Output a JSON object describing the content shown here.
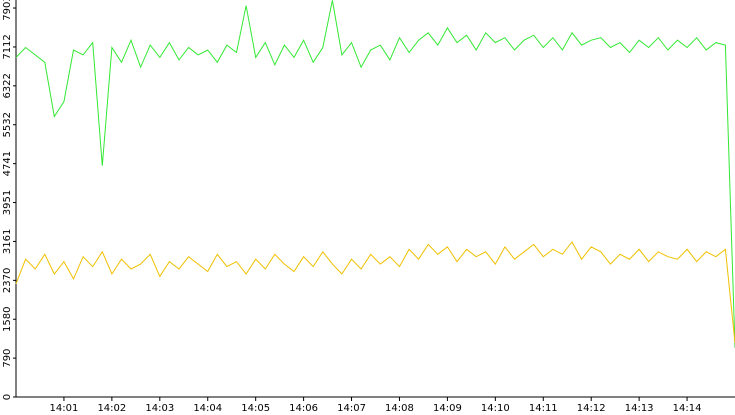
{
  "chart_data": {
    "type": "line",
    "x": [
      0,
      0.2,
      0.4,
      0.6,
      0.8,
      1,
      1.2,
      1.4,
      1.6,
      1.8,
      2,
      2.2,
      2.4,
      2.6,
      2.8,
      3,
      3.2,
      3.4,
      3.6,
      3.8,
      4,
      4.2,
      4.4,
      4.6,
      4.8,
      5,
      5.2,
      5.4,
      5.6,
      5.8,
      6,
      6.2,
      6.4,
      6.6,
      6.8,
      7,
      7.2,
      7.4,
      7.6,
      7.8,
      8,
      8.2,
      8.4,
      8.6,
      8.8,
      9,
      9.2,
      9.4,
      9.6,
      9.8,
      10,
      10.2,
      10.4,
      10.6,
      10.8,
      11,
      11.2,
      11.4,
      11.6,
      11.8,
      12,
      12.2,
      12.4,
      12.6,
      12.8,
      13,
      13.2,
      13.4,
      13.6,
      13.8,
      14,
      14.2,
      14.4,
      14.6,
      14.8,
      15
    ],
    "series": [
      {
        "color": "#33e833",
        "values": [
          6900,
          7100,
          6950,
          6800,
          5700,
          6000,
          7050,
          6950,
          7200,
          4700,
          7100,
          6800,
          7250,
          6700,
          7150,
          6900,
          7200,
          6850,
          7100,
          6950,
          7050,
          6800,
          7150,
          7000,
          7950,
          6900,
          7200,
          6750,
          7150,
          6900,
          7250,
          6800,
          7100,
          8060,
          6950,
          7200,
          6700,
          7050,
          7150,
          6850,
          7300,
          7000,
          7250,
          7400,
          7150,
          7500,
          7200,
          7350,
          7050,
          7400,
          7200,
          7300,
          7050,
          7250,
          7350,
          7100,
          7300,
          7050,
          7400,
          7150,
          7250,
          7300,
          7100,
          7200,
          7000,
          7250,
          7100,
          7300,
          7050,
          7250,
          7100,
          7300,
          7050,
          7200,
          7150,
          1000
        ]
      },
      {
        "color": "#f0c000",
        "values": [
          2300,
          2800,
          2600,
          2900,
          2500,
          2750,
          2400,
          2850,
          2650,
          2950,
          2500,
          2800,
          2600,
          2700,
          2900,
          2450,
          2750,
          2600,
          2850,
          2700,
          2550,
          2900,
          2650,
          2750,
          2500,
          2800,
          2600,
          2900,
          2700,
          2550,
          2850,
          2650,
          2950,
          2700,
          2500,
          2800,
          2600,
          2900,
          2700,
          2850,
          2650,
          3000,
          2800,
          3100,
          2900,
          3050,
          2750,
          3000,
          2850,
          2950,
          2700,
          3050,
          2800,
          2950,
          3100,
          2850,
          3000,
          2900,
          3150,
          2800,
          3050,
          2950,
          2700,
          2900,
          2800,
          3000,
          2750,
          2950,
          2850,
          2800,
          3000,
          2750,
          2950,
          2850,
          3000,
          1100
        ]
      }
    ],
    "xlim": [
      0,
      15
    ],
    "xticks": [
      {
        "value": 1,
        "label": "14:01"
      },
      {
        "value": 2,
        "label": "14:02"
      },
      {
        "value": 3,
        "label": "14:03"
      },
      {
        "value": 4,
        "label": "14:04"
      },
      {
        "value": 5,
        "label": "14:05"
      },
      {
        "value": 6,
        "label": "14:06"
      },
      {
        "value": 7,
        "label": "14:07"
      },
      {
        "value": 8,
        "label": "14:08"
      },
      {
        "value": 9,
        "label": "14:09"
      },
      {
        "value": 10,
        "label": "14:10"
      },
      {
        "value": 11,
        "label": "14:11"
      },
      {
        "value": 12,
        "label": "14:12"
      },
      {
        "value": 13,
        "label": "14:13"
      },
      {
        "value": 14,
        "label": "14:14"
      }
    ],
    "ylim": [
      0,
      8066
    ],
    "yticks": [
      0,
      790,
      1580,
      2370,
      3161,
      3951,
      4741,
      5532,
      6322,
      7112,
      7903
    ]
  }
}
